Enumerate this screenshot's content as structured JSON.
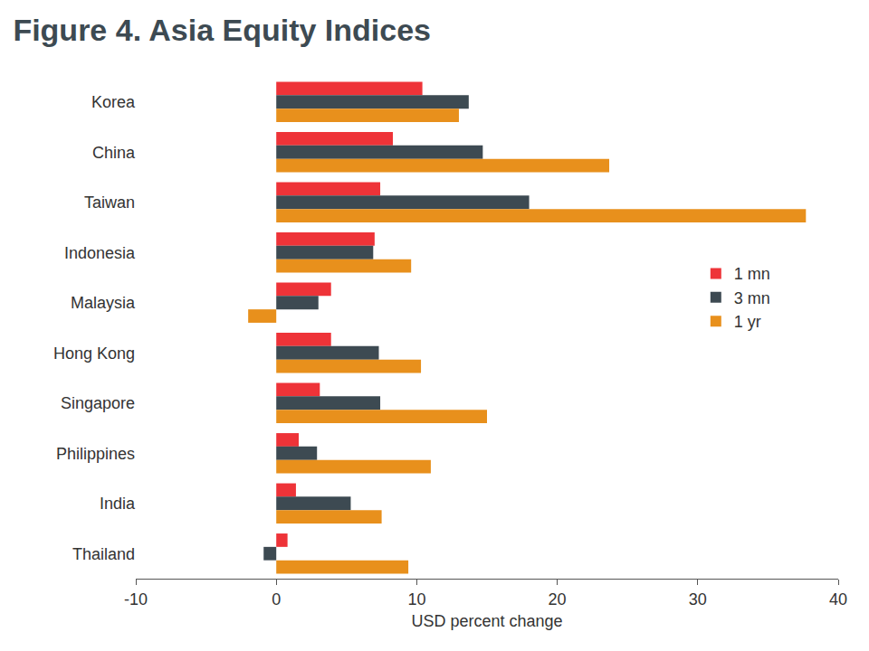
{
  "chart_data": {
    "type": "bar",
    "title": "Figure 4. Asia Equity Indices",
    "xlabel": "USD percent change",
    "orientation": "horizontal",
    "categories": [
      "Korea",
      "China",
      "Taiwan",
      "Indonesia",
      "Malaysia",
      "Hong Kong",
      "Singapore",
      "Philippines",
      "India",
      "Thailand"
    ],
    "series": [
      {
        "name": "1 mn",
        "color": "#ee3338",
        "values": [
          10.4,
          8.3,
          7.4,
          7.0,
          3.9,
          3.9,
          3.1,
          1.6,
          1.4,
          0.8
        ]
      },
      {
        "name": "3 mn",
        "color": "#3d4a52",
        "values": [
          13.7,
          14.7,
          18.0,
          6.9,
          3.0,
          7.3,
          7.4,
          2.9,
          5.3,
          -0.9
        ]
      },
      {
        "name": "1 yr",
        "color": "#e8901c",
        "values": [
          13.0,
          23.7,
          37.7,
          9.6,
          -2.0,
          10.3,
          15.0,
          11.0,
          7.5,
          9.4
        ]
      }
    ],
    "xlim": [
      -10,
      40
    ],
    "xticks": [
      -10,
      0,
      10,
      20,
      30,
      40
    ],
    "grid": false,
    "legend": "right"
  }
}
